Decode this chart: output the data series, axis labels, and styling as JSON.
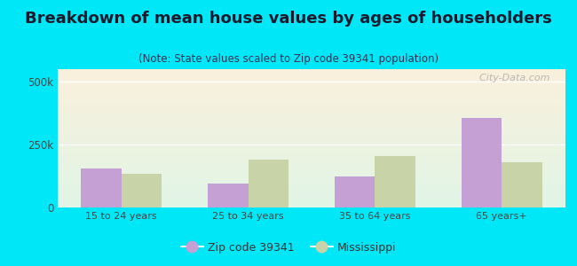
{
  "title": "Breakdown of mean house values by ages of householders",
  "subtitle": "(Note: State values scaled to Zip code 39341 population)",
  "categories": [
    "15 to 24 years",
    "25 to 34 years",
    "35 to 64 years",
    "65 years+"
  ],
  "zip_values": [
    155000,
    95000,
    125000,
    355000
  ],
  "ms_values": [
    135000,
    190000,
    205000,
    180000
  ],
  "zip_color": "#c4a0d4",
  "ms_color": "#c8d4a8",
  "background_outer": "#00e8f8",
  "ylim": [
    0,
    550000
  ],
  "yticks": [
    0,
    250000,
    500000
  ],
  "ytick_labels": [
    "0",
    "250k",
    "500k"
  ],
  "legend_zip_label": "Zip code 39341",
  "legend_ms_label": "Mississippi",
  "bar_width": 0.32,
  "title_fontsize": 13,
  "subtitle_fontsize": 8.5,
  "watermark": "  City-Data.com"
}
